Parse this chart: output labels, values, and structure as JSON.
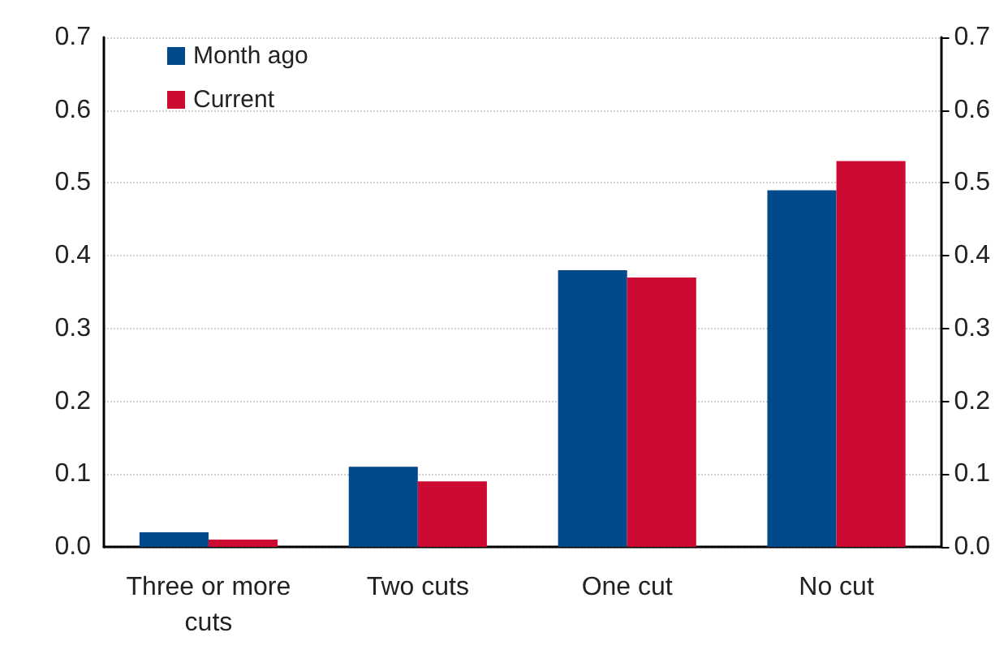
{
  "chart_data": {
    "type": "bar",
    "categories": [
      "Three or more\ncuts",
      "Two cuts",
      "One cut",
      "No cut"
    ],
    "series": [
      {
        "name": "Month ago",
        "color": "#004a8c",
        "values": [
          0.02,
          0.11,
          0.38,
          0.49
        ]
      },
      {
        "name": "Current",
        "color": "#cc0a32",
        "values": [
          0.01,
          0.09,
          0.37,
          0.53
        ]
      }
    ],
    "ylim": [
      0,
      0.7
    ],
    "yticks": [
      {
        "value": 0,
        "label": "0.0"
      },
      0.1,
      0.2,
      0.3,
      0.4,
      0.5,
      0.6,
      0.7
    ],
    "y2lim": [
      0,
      0.7
    ],
    "y2ticks": [
      {
        "value": 0,
        "label": "0.0"
      },
      0.1,
      0.2,
      0.3,
      0.4,
      0.5,
      0.6,
      0.7
    ],
    "grid": "y",
    "legend": "top left"
  }
}
